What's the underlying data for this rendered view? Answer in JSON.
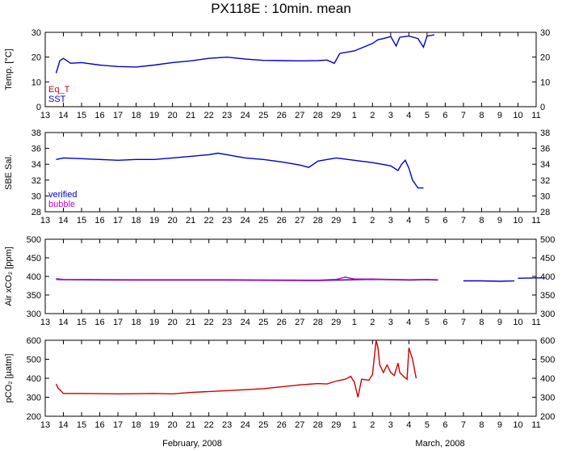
{
  "title": "PX118E : 10min. mean",
  "month_labels": [
    "February, 2008",
    "March, 2008"
  ],
  "x_tick_labels": [
    "13",
    "14",
    "15",
    "16",
    "17",
    "18",
    "19",
    "20",
    "21",
    "22",
    "23",
    "24",
    "25",
    "26",
    "27",
    "28",
    "29",
    "1",
    "2",
    "3",
    "4",
    "5",
    "6",
    "7",
    "8",
    "9",
    "10",
    "11"
  ],
  "colors": {
    "blue": "#0000cc",
    "red": "#cc0000",
    "magenta": "#cc00cc",
    "axis": "#000000"
  },
  "chart_data": [
    {
      "type": "line",
      "ylabel": "Temp. [°C]",
      "ylim": [
        0,
        30
      ],
      "yticks": [
        0,
        10,
        20,
        30
      ],
      "legend": [
        {
          "name": "Eq_T",
          "color": "#cc0000"
        },
        {
          "name": "SST",
          "color": "#0000cc"
        }
      ],
      "x_unit": "day index (0 = Feb 13)",
      "series": [
        {
          "name": "SST",
          "color": "#0000cc",
          "points": [
            [
              0.6,
              13.5
            ],
            [
              0.8,
              18.5
            ],
            [
              1.0,
              19.5
            ],
            [
              1.4,
              17.5
            ],
            [
              2.0,
              17.8
            ],
            [
              3.0,
              16.8
            ],
            [
              4.0,
              16.2
            ],
            [
              5.0,
              16.0
            ],
            [
              6.0,
              16.8
            ],
            [
              7.0,
              17.8
            ],
            [
              8.0,
              18.5
            ],
            [
              9.0,
              19.5
            ],
            [
              10.0,
              20.0
            ],
            [
              11.0,
              19.2
            ],
            [
              12.0,
              18.7
            ],
            [
              13.0,
              18.6
            ],
            [
              14.0,
              18.5
            ],
            [
              15.0,
              18.6
            ],
            [
              15.5,
              18.8
            ],
            [
              15.9,
              17.5
            ],
            [
              16.2,
              21.5
            ],
            [
              17.0,
              22.5
            ],
            [
              17.5,
              24.0
            ],
            [
              18.0,
              25.5
            ],
            [
              18.3,
              27.0
            ],
            [
              18.6,
              27.5
            ],
            [
              19.0,
              28.3
            ],
            [
              19.3,
              24.5
            ],
            [
              19.5,
              28.0
            ],
            [
              20.0,
              28.5
            ],
            [
              20.5,
              27.5
            ],
            [
              20.8,
              24.0
            ],
            [
              21.0,
              28.5
            ],
            [
              21.4,
              29.0
            ]
          ]
        }
      ]
    },
    {
      "type": "line",
      "ylabel": "SBE Sal.",
      "ylim": [
        28,
        38
      ],
      "yticks": [
        28,
        30,
        32,
        34,
        36,
        38
      ],
      "legend": [
        {
          "name": "verified",
          "color": "#0000cc"
        },
        {
          "name": "bubble",
          "color": "#cc00cc"
        }
      ],
      "x_unit": "day index (0 = Feb 13)",
      "series": [
        {
          "name": "verified",
          "color": "#0000cc",
          "points": [
            [
              0.6,
              34.6
            ],
            [
              1.0,
              34.8
            ],
            [
              2.0,
              34.7
            ],
            [
              3.0,
              34.6
            ],
            [
              4.0,
              34.5
            ],
            [
              5.0,
              34.6
            ],
            [
              6.0,
              34.6
            ],
            [
              7.0,
              34.8
            ],
            [
              8.0,
              35.0
            ],
            [
              9.0,
              35.2
            ],
            [
              9.5,
              35.4
            ],
            [
              10.0,
              35.2
            ],
            [
              11.0,
              34.8
            ],
            [
              12.0,
              34.6
            ],
            [
              13.0,
              34.3
            ],
            [
              14.0,
              33.9
            ],
            [
              14.5,
              33.6
            ],
            [
              15.0,
              34.4
            ],
            [
              16.0,
              34.8
            ],
            [
              17.0,
              34.5
            ],
            [
              18.0,
              34.2
            ],
            [
              19.0,
              33.8
            ],
            [
              19.4,
              33.2
            ],
            [
              19.6,
              34.0
            ],
            [
              19.8,
              34.5
            ],
            [
              20.0,
              33.5
            ],
            [
              20.2,
              32.0
            ],
            [
              20.5,
              31.0
            ],
            [
              20.8,
              31.0
            ]
          ]
        }
      ]
    },
    {
      "type": "line",
      "ylabel": "Air xCO₂ [ppm]",
      "ylim": [
        300,
        500
      ],
      "yticks": [
        300,
        350,
        400,
        450,
        500
      ],
      "x_unit": "day index (0 = Feb 13)",
      "series": [
        {
          "name": "blue",
          "color": "#0000cc",
          "points": [
            [
              0.6,
              392
            ],
            [
              1.0,
              391
            ],
            [
              5.0,
              390
            ],
            [
              10.0,
              390
            ],
            [
              15.0,
              389
            ],
            [
              16.0,
              390
            ],
            [
              17.0,
              391
            ],
            [
              18.0,
              392
            ],
            [
              19.0,
              391
            ],
            [
              20.0,
              390
            ],
            [
              21.0,
              391
            ],
            [
              21.6,
              390
            ]
          ]
        },
        {
          "name": "blue_segment2",
          "color": "#0000cc",
          "points": [
            [
              23.0,
              388
            ],
            [
              24.0,
              388
            ],
            [
              25.0,
              387
            ],
            [
              25.8,
              388
            ]
          ]
        },
        {
          "name": "blue_segment3",
          "color": "#0000cc",
          "points": [
            [
              26.0,
              395
            ],
            [
              27.0,
              396
            ],
            [
              27.5,
              396
            ]
          ]
        },
        {
          "name": "magenta",
          "color": "#cc00cc",
          "points": [
            [
              0.6,
              394
            ],
            [
              1.0,
              392
            ],
            [
              5.0,
              391
            ],
            [
              10.0,
              391
            ],
            [
              15.0,
              390
            ],
            [
              16.0,
              392
            ],
            [
              16.5,
              398
            ],
            [
              17.0,
              393
            ],
            [
              18.0,
              393
            ],
            [
              19.0,
              392
            ],
            [
              20.0,
              391
            ],
            [
              21.0,
              392
            ],
            [
              21.6,
              391
            ]
          ]
        }
      ]
    },
    {
      "type": "line",
      "ylabel": "pCO₂ [µatm]",
      "ylim": [
        200,
        600
      ],
      "yticks": [
        200,
        300,
        400,
        500,
        600
      ],
      "x_unit": "day index (0 = Feb 13)",
      "series": [
        {
          "name": "pCO2",
          "color": "#cc0000",
          "points": [
            [
              0.6,
              370
            ],
            [
              0.7,
              350
            ],
            [
              1.0,
              320
            ],
            [
              2.0,
              320
            ],
            [
              4.0,
              318
            ],
            [
              6.0,
              320
            ],
            [
              7.0,
              318
            ],
            [
              8.0,
              325
            ],
            [
              10.0,
              335
            ],
            [
              12.0,
              345
            ],
            [
              13.0,
              355
            ],
            [
              14.0,
              365
            ],
            [
              15.0,
              372
            ],
            [
              15.5,
              370
            ],
            [
              16.0,
              385
            ],
            [
              16.5,
              395
            ],
            [
              16.8,
              410
            ],
            [
              17.0,
              380
            ],
            [
              17.2,
              300
            ],
            [
              17.4,
              395
            ],
            [
              17.8,
              390
            ],
            [
              18.0,
              420
            ],
            [
              18.2,
              600
            ],
            [
              18.3,
              560
            ],
            [
              18.4,
              470
            ],
            [
              18.6,
              430
            ],
            [
              18.8,
              470
            ],
            [
              19.0,
              430
            ],
            [
              19.2,
              415
            ],
            [
              19.4,
              480
            ],
            [
              19.5,
              430
            ],
            [
              19.7,
              410
            ],
            [
              19.9,
              395
            ],
            [
              20.0,
              560
            ],
            [
              20.2,
              500
            ],
            [
              20.4,
              400
            ]
          ]
        }
      ]
    }
  ]
}
